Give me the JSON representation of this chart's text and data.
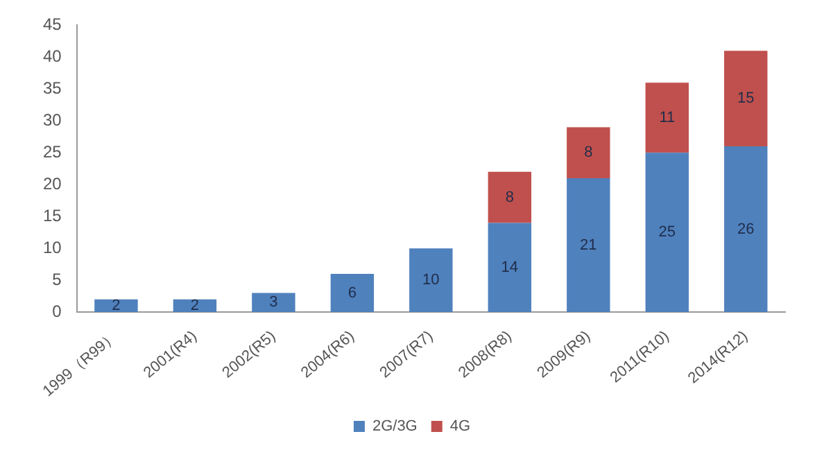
{
  "chart_data": {
    "type": "bar",
    "stacked": true,
    "categories": [
      "1999（R99）",
      "2001(R4)",
      "2002(R5)",
      "2004(R6)",
      "2007(R7)",
      "2008(R8)",
      "2009(R9)",
      "2011(R10)",
      "2014(R12)"
    ],
    "series": [
      {
        "name": "2G/3G",
        "color": "#4f81bd",
        "values": [
          2,
          2,
          3,
          6,
          10,
          14,
          21,
          25,
          26
        ]
      },
      {
        "name": "4G",
        "color": "#c0504d",
        "values": [
          null,
          null,
          null,
          null,
          null,
          8,
          8,
          11,
          15
        ]
      }
    ],
    "ylim": [
      0,
      45
    ],
    "yticks": [
      0,
      5,
      10,
      15,
      20,
      25,
      30,
      35,
      40,
      45
    ],
    "grid": false,
    "legend": "bottom",
    "data_labels": true
  }
}
